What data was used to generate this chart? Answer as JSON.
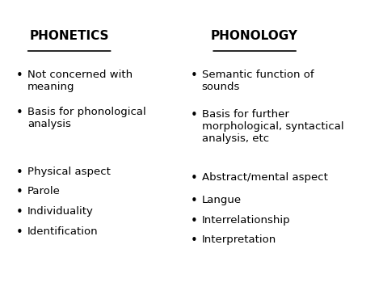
{
  "title_left": "PHONETICS",
  "title_right": "PHONOLOGY",
  "left_items": [
    "Not concerned with\nmeaning",
    "Basis for phonological\nanalysis",
    "",
    "Physical aspect",
    "Parole",
    "Individuality",
    "Identification"
  ],
  "right_items": [
    "Semantic function of\nsounds",
    "Basis for further\nmorphological, syntactical\nanalysis, etc",
    "Abstract/mental aspect",
    "Langue",
    "Interrelationship",
    "Interpretation"
  ],
  "bg_color": "#ffffff",
  "text_color": "#000000",
  "title_fontsize": 11,
  "body_fontsize": 9.5,
  "bullet": "•"
}
